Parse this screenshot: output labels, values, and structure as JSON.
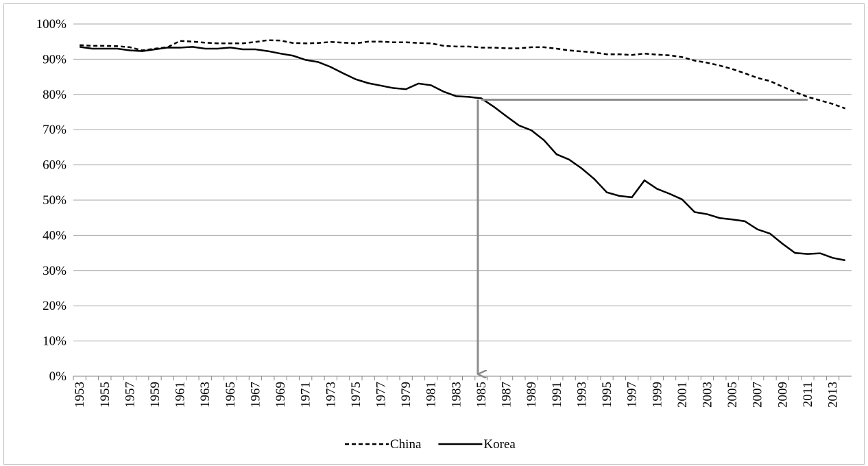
{
  "chart_data": {
    "type": "line",
    "categories": [
      "1953",
      null,
      "1955",
      null,
      "1957",
      null,
      "1959",
      null,
      "1961",
      null,
      "1963",
      null,
      "1965",
      null,
      "1967",
      null,
      "1969",
      null,
      "1971",
      null,
      "1973",
      null,
      "1975",
      null,
      "1977",
      null,
      "1979",
      null,
      "1981",
      null,
      "1983",
      null,
      "1985",
      null,
      "1987",
      null,
      "1989",
      null,
      "1991",
      null,
      "1993",
      null,
      "1995",
      null,
      "1997",
      null,
      "1999",
      null,
      "2001",
      null,
      "2003",
      null,
      "2005",
      null,
      "2007",
      null,
      "2009",
      null,
      "2011",
      null,
      "2013",
      null
    ],
    "series": [
      {
        "name": "China",
        "color": "#000000",
        "dashed": true,
        "values": [
          94,
          93.8,
          93.8,
          93.7,
          93.4,
          92.5,
          93,
          93.4,
          95.2,
          95,
          94.7,
          94.5,
          94.5,
          94.5,
          94.9,
          95.4,
          95.3,
          94.6,
          94.5,
          94.6,
          94.9,
          94.7,
          94.5,
          95,
          95,
          94.8,
          94.8,
          94.6,
          94.5,
          93.8,
          93.6,
          93.6,
          93.3,
          93.3,
          93.1,
          93.1,
          93.4,
          93.4,
          93,
          92.5,
          92.2,
          91.9,
          91.4,
          91.4,
          91.2,
          91.6,
          91.3,
          91.1,
          90.6,
          89.6,
          89,
          88.2,
          87.2,
          86,
          84.7,
          83.8,
          82.2,
          80.7,
          79.3,
          78.3,
          77.3,
          76
        ]
      },
      {
        "name": "Korea",
        "color": "#000000",
        "dashed": false,
        "values": [
          93.5,
          93,
          93,
          93,
          92.5,
          92.3,
          92.8,
          93.3,
          93.3,
          93.5,
          93,
          93,
          93.3,
          92.8,
          92.8,
          92.3,
          91.6,
          91,
          89.8,
          89.2,
          87.8,
          86,
          84.3,
          83.2,
          82.5,
          81.8,
          81.5,
          83.1,
          82.6,
          80.8,
          79.5,
          79.3,
          78.9,
          76.5,
          73.8,
          71.2,
          69.8,
          67,
          63,
          61.5,
          59,
          56,
          52.2,
          51.2,
          50.8,
          55.6,
          53.2,
          51.8,
          50.2,
          46.6,
          46,
          44.9,
          44.5,
          44,
          41.7,
          40.5,
          37.6,
          35,
          34.7,
          34.9,
          33.6,
          32.9
        ]
      }
    ],
    "ylim": [
      0,
      100
    ],
    "yticks": [
      {
        "value": 0,
        "label": "0%"
      },
      {
        "value": 10,
        "label": "10%"
      },
      {
        "value": 20,
        "label": "20%"
      },
      {
        "value": 30,
        "label": "30%"
      },
      {
        "value": 40,
        "label": "40%"
      },
      {
        "value": 50,
        "label": "50%"
      },
      {
        "value": 60,
        "label": "60%"
      },
      {
        "value": 70,
        "label": "70%"
      },
      {
        "value": 80,
        "label": "80%"
      },
      {
        "value": 90,
        "label": "90%"
      },
      {
        "value": 100,
        "label": "100%"
      }
    ],
    "grid": true,
    "legend": "bottom",
    "guide": {
      "y": 78.5,
      "x_from": 1985,
      "x_to": 2011,
      "color": "#8c8c8c"
    }
  }
}
